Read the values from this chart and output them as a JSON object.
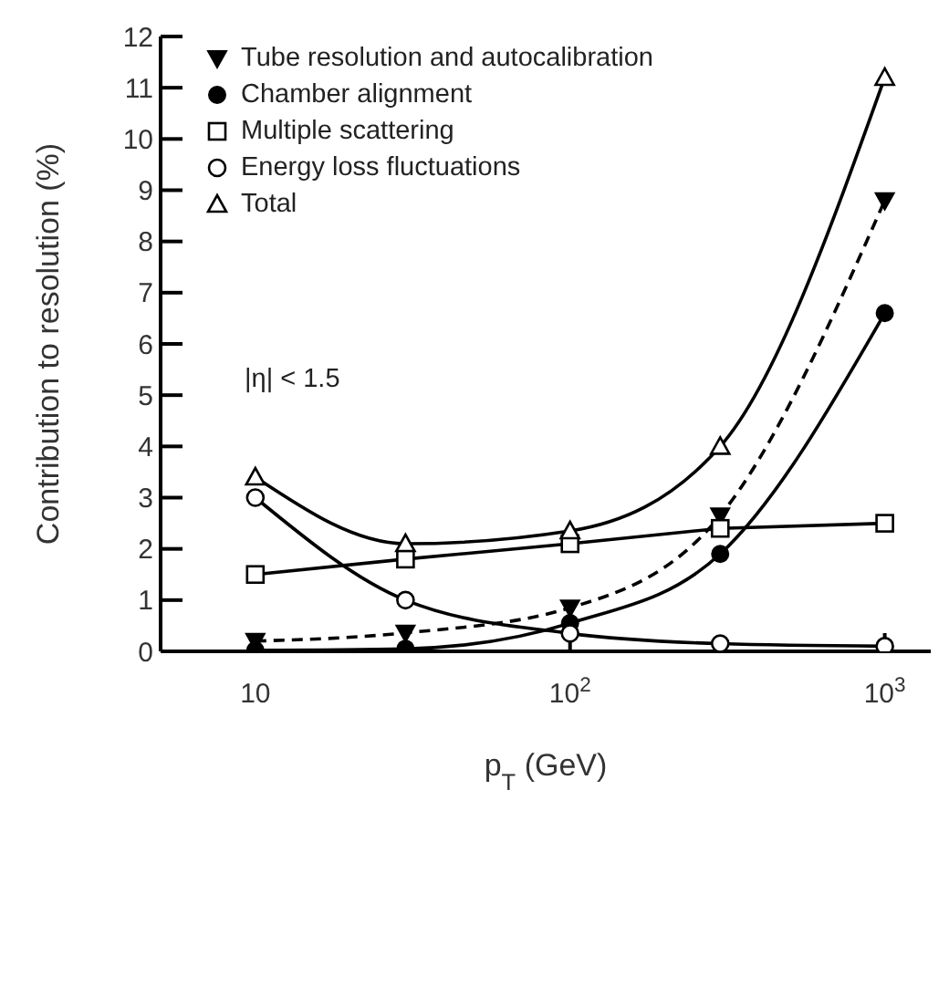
{
  "chart_data": {
    "type": "line",
    "xlabel": "p$_{T}$ (GeV)",
    "ylabel": "Contribution to resolution (%)",
    "x": [
      10,
      30,
      100,
      300,
      1000
    ],
    "series": [
      {
        "name": "Tube resolution and autocalibration",
        "color": "#000000",
        "marker": "triangle-down",
        "line_style": "dashed",
        "values": [
          0.2,
          0.36,
          0.85,
          2.65,
          8.8
        ]
      },
      {
        "name": "Chamber alignment",
        "color": "#000000",
        "marker": "circle-filled",
        "line_style": "solid",
        "values": [
          0.02,
          0.05,
          0.55,
          1.9,
          6.6
        ]
      },
      {
        "name": "Multiple scattering",
        "color": "#000000",
        "marker": "square",
        "line_style": "solid",
        "values": [
          1.5,
          1.8,
          2.1,
          2.4,
          2.5
        ]
      },
      {
        "name": "Energy loss fluctuations",
        "color": "#000000",
        "marker": "circle",
        "line_style": "solid",
        "values": [
          3.0,
          1.0,
          0.35,
          0.15,
          0.1
        ]
      },
      {
        "name": "Total",
        "color": "#000000",
        "marker": "triangle",
        "line_style": "solid",
        "values": [
          3.4,
          2.1,
          2.35,
          4.0,
          11.2
        ]
      }
    ],
    "log": "x",
    "xlim": [
      5,
      1400
    ],
    "xticks": [
      10,
      {
        "value": 100,
        "label": "10$^{2}$"
      },
      {
        "value": 1000,
        "label": "10$^{3}$"
      }
    ],
    "ylim": [
      0,
      12
    ],
    "yticks": [
      0,
      1,
      2,
      3,
      4,
      5,
      6,
      7,
      8,
      9,
      10,
      11,
      12
    ],
    "grid": false,
    "legend": "top left",
    "annotations": [
      "|η| < 1.5"
    ]
  }
}
